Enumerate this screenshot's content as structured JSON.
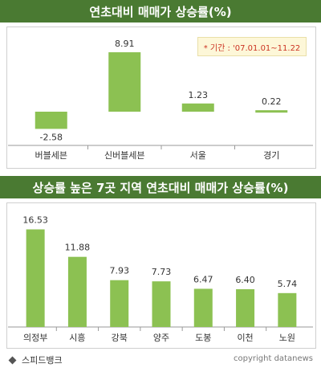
{
  "chart_data": [
    {
      "type": "bar",
      "title": "연초대비 매매가 상승률(%)",
      "note": "* 기간 : '07.01.01~11.22",
      "categories": [
        "버블세븐",
        "신버블세븐",
        "서울",
        "경기"
      ],
      "values": [
        -2.58,
        8.91,
        1.23,
        0.22
      ],
      "value_labels": [
        "-2.58",
        "8.91",
        "1.23",
        "0.22"
      ],
      "color": "#8cc152"
    },
    {
      "type": "bar",
      "title": "상승률 높은 7곳 지역 연초대비 매매가 상승률(%)",
      "categories": [
        "의정부",
        "시흥",
        "강북",
        "양주",
        "도봉",
        "이천",
        "노원"
      ],
      "values": [
        16.53,
        11.88,
        7.93,
        7.73,
        6.47,
        6.4,
        5.74
      ],
      "value_labels": [
        "16.53",
        "11.88",
        "7.93",
        "7.73",
        "6.47",
        "6.40",
        "5.74"
      ],
      "color": "#8cc152"
    }
  ],
  "footer": {
    "source": "스피드뱅크",
    "copyright": "copyright datanews"
  }
}
